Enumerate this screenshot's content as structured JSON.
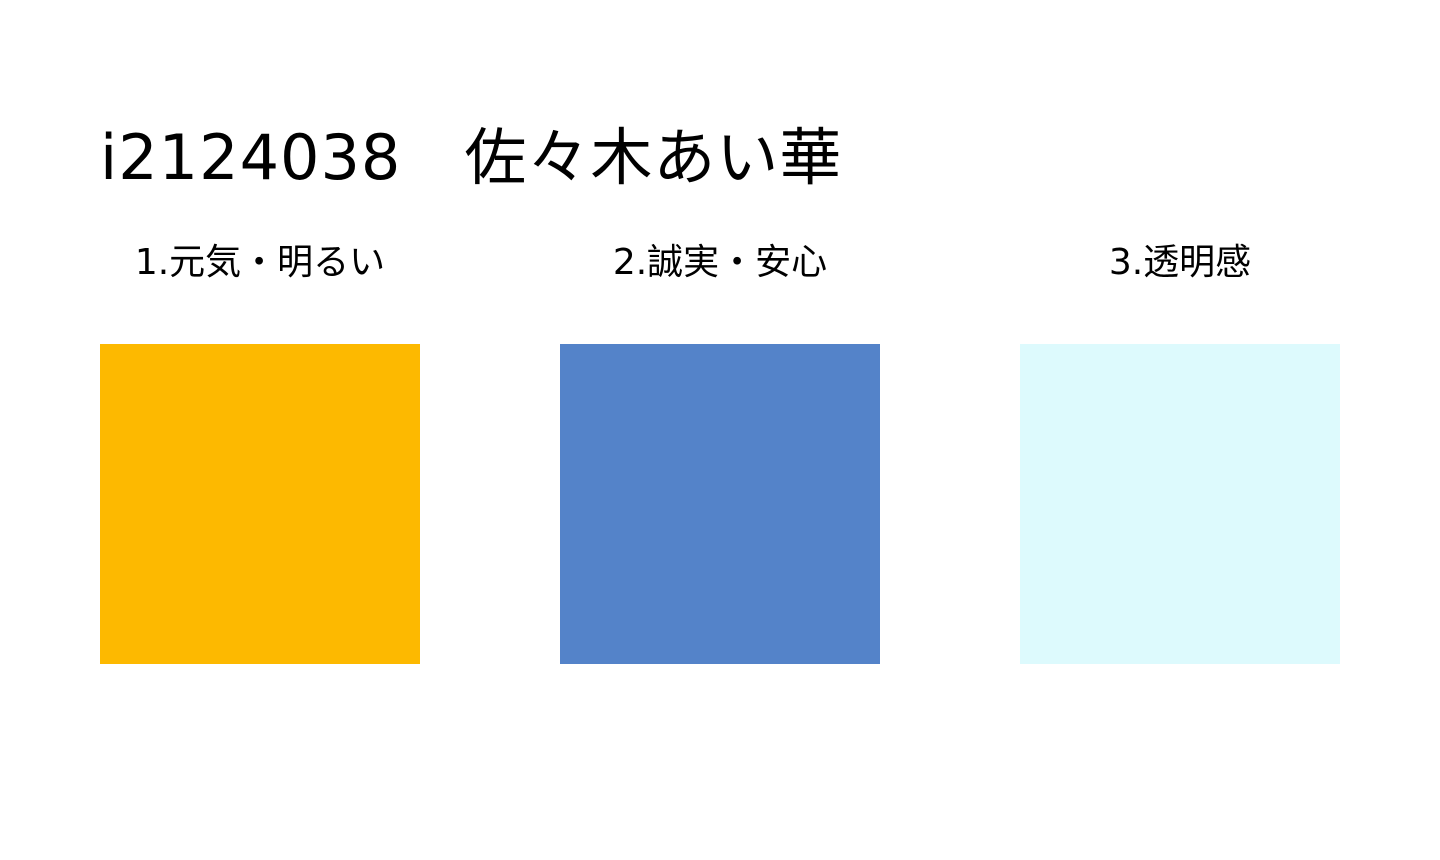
{
  "title": "i2124038　佐々木あい華",
  "swatches": [
    {
      "label": "1.元気・明るい",
      "color": "#FDB900"
    },
    {
      "label": "2.誠実・安心",
      "color": "#5483C9"
    },
    {
      "label": "3.透明感",
      "color": "#DDFAFD"
    }
  ]
}
